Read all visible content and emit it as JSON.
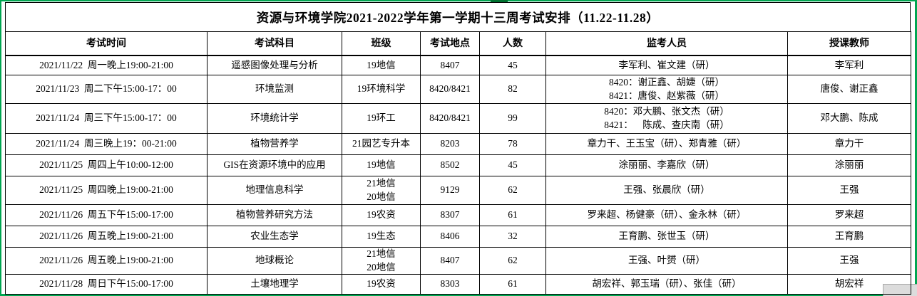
{
  "title": "资源与环境学院2021-2022学年第一学期十三周考试安排（11.22-11.28）",
  "accent_green": "#00a651",
  "table": {
    "headers": [
      "考试时间",
      "考试科目",
      "班级",
      "考试地点",
      "人数",
      "监考人员",
      "授课教师"
    ],
    "rows": [
      {
        "time": "2021/11/22  周一晚上19:00-21:00",
        "subject": "遥感图像处理与分析",
        "class": "19地信",
        "location": "8407",
        "count": "45",
        "invigilators": "李军利、崔文建（研）",
        "teacher": "李军利"
      },
      {
        "time": "2021/11/23  周二下午15:00-17：00",
        "subject": "环境监测",
        "class": "19环境科学",
        "location": "8420/8421",
        "count": "82",
        "invigilators": "8420：谢正鑫、胡婕（研）\n8421：唐俊、赵紫薇（研）",
        "teacher": "唐俊、谢正鑫"
      },
      {
        "time": "2021/11/24  周三下午15:00-17：00",
        "subject": "环境统计学",
        "class": "19环工",
        "location": "8420/8421",
        "count": "99",
        "invigilators": "8420：邓大鹏、张文杰（研）\n8421：    陈成、查庆南（研）",
        "teacher": "邓大鹏、陈成"
      },
      {
        "time": "2021/11/24  周三晚上19：00-21:00",
        "subject": "植物营养学",
        "class": "21园艺专升本",
        "location": "8203",
        "count": "78",
        "invigilators": "章力干、王玉宝（研）、郑青雅（研）",
        "teacher": "章力干"
      },
      {
        "time": "2021/11/25  周四上午10:00-12:00",
        "subject": "GIS在资源环境中的应用",
        "class": "19地信",
        "location": "8502",
        "count": "45",
        "invigilators": "涂丽丽、李嘉欣（研）",
        "teacher": "涂丽丽"
      },
      {
        "time": "2021/11/25  周四晚上19:00-21:00",
        "subject": "地理信息科学",
        "class": "21地信\n20地信",
        "location": "9129",
        "count": "62",
        "invigilators": "王强、张晨欣（研）",
        "teacher": "王强"
      },
      {
        "time": "2021/11/26  周五下午15:00-17:00",
        "subject": "植物营养研究方法",
        "class": "19农资",
        "location": "8307",
        "count": "61",
        "invigilators": "罗来超、杨健豪（研）、金永林（研）",
        "teacher": "罗来超"
      },
      {
        "time": "2021/11/26  周五晚上19:00-21:00",
        "subject": "农业生态学",
        "class": "19生态",
        "location": "8406",
        "count": "32",
        "invigilators": "王育鹏、张世玉（研）",
        "teacher": "王育鹏"
      },
      {
        "time": "2021/11/26  周五晚上19:00-21:00",
        "subject": "地球概论",
        "class": "21地信\n20地信",
        "location": "8407",
        "count": "62",
        "invigilators": "王强、叶赟（研）",
        "teacher": "王强"
      },
      {
        "time": "2021/11/28  周日下午15:00-17:00",
        "subject": "土壤地理学",
        "class": "19农资",
        "location": "8303",
        "count": "61",
        "invigilators": "胡宏祥、郭玉瑞（研）、张佳（研）",
        "teacher": "胡宏祥"
      }
    ]
  }
}
